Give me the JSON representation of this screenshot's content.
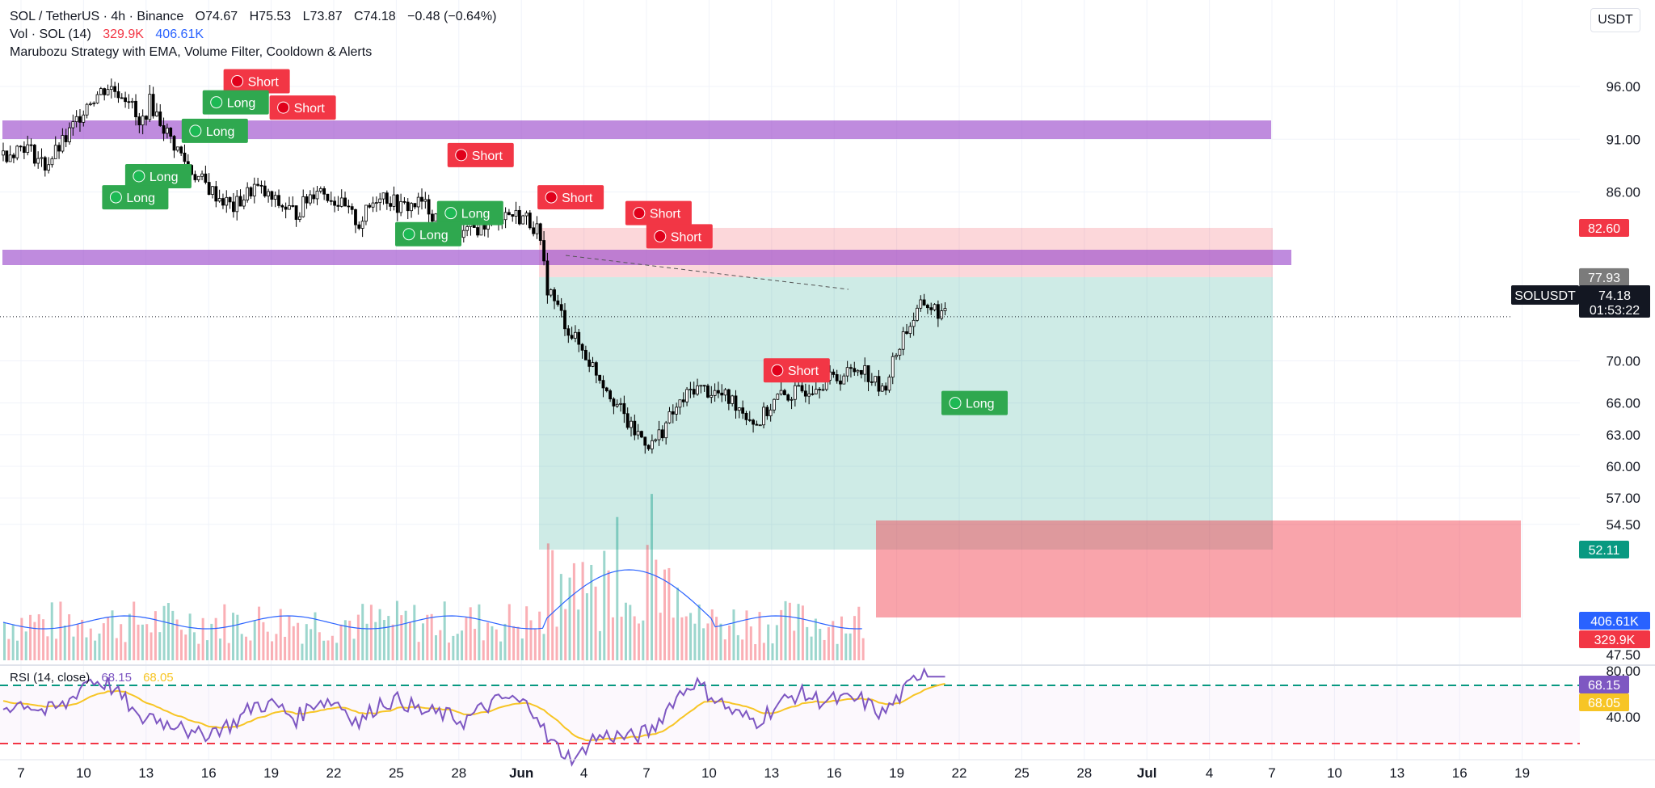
{
  "header": {
    "symbol": "SOL / TetherUS · 4h · Binance",
    "open": "O74.67",
    "high": "H75.53",
    "low": "L73.87",
    "close": "C74.18",
    "change": "−0.48 (−0.64%)",
    "vol_label": "Vol · SOL (14)",
    "vol_value": "329.9K",
    "vol_ma": "406.61K",
    "strategy": "Marubozu Strategy with EMA, Volume Filter, Cooldown & Alerts",
    "currency": "USDT"
  },
  "rsi_legend": {
    "label": "RSI (14, close)",
    "value": "68.15",
    "ma": "68.05"
  },
  "price_axis": {
    "ticks": [
      "96.00",
      "91.00",
      "86.00",
      "70.00",
      "66.00",
      "63.00",
      "60.00",
      "57.00",
      "54.50",
      "47.50"
    ],
    "rsi_ticks": [
      "80.00",
      "40.00"
    ]
  },
  "badges": {
    "upper_target": "82.60",
    "zone": "77.93",
    "symbol": "SOLUSDT",
    "last": "74.18",
    "countdown": "01:53:22",
    "stop": "52.11",
    "vol_ma": "406.61K",
    "vol": "329.9K",
    "rsi": "68.15",
    "rsi_ma": "68.05"
  },
  "date_labels": [
    "7",
    "10",
    "13",
    "16",
    "19",
    "22",
    "25",
    "28",
    "Jun",
    "4",
    "7",
    "10",
    "13",
    "16",
    "19",
    "22",
    "25",
    "28",
    "Jul",
    "4",
    "7",
    "10",
    "13",
    "16",
    "19"
  ],
  "signals": [
    {
      "label": "Short",
      "kind": "short",
      "x": 11.8,
      "price": 96.5
    },
    {
      "label": "Long",
      "kind": "long",
      "x": 10.8,
      "price": 94.5
    },
    {
      "label": "Short",
      "kind": "short",
      "x": 14.0,
      "price": 94.0
    },
    {
      "label": "Long",
      "kind": "long",
      "x": 9.8,
      "price": 91.8
    },
    {
      "label": "Short",
      "kind": "short",
      "x": 22.5,
      "price": 89.5
    },
    {
      "label": "Long",
      "kind": "long",
      "x": 7.1,
      "price": 87.5
    },
    {
      "label": "Long",
      "kind": "long",
      "x": 6.0,
      "price": 85.5
    },
    {
      "label": "Short",
      "kind": "short",
      "x": 26.8,
      "price": 85.5
    },
    {
      "label": "Long",
      "kind": "long",
      "x": 22.0,
      "price": 84.0
    },
    {
      "label": "Short",
      "kind": "short",
      "x": 31.0,
      "price": 84.0
    },
    {
      "label": "Long",
      "kind": "long",
      "x": 20.0,
      "price": 82.0
    },
    {
      "label": "Short",
      "kind": "short",
      "x": 32.0,
      "price": 81.8
    },
    {
      "label": "Short",
      "kind": "short",
      "x": 37.6,
      "price": 69.1
    },
    {
      "label": "Long",
      "kind": "long",
      "x": 46.1,
      "price": 66.0
    }
  ],
  "colors": {
    "up": "#089981",
    "down": "#f23645",
    "candle": "#000000",
    "zone": "#9c4dcc",
    "long_box": "#0b9981",
    "short_box": "#f23645",
    "vol_ma": "#2962ff",
    "rsi": "#7e57c2",
    "rsi_ma": "#f7c525"
  },
  "chart_data": {
    "type": "candlestick",
    "interval": "4h",
    "x_unit": "day offset from May 7 2025 (0 = May 7)",
    "close_path": [
      [
        0,
        89.5
      ],
      [
        1,
        90.5
      ],
      [
        2,
        88.5
      ],
      [
        3,
        91.0
      ],
      [
        4,
        94.5
      ],
      [
        5,
        96.0
      ],
      [
        6,
        95.0
      ],
      [
        6.5,
        92.0
      ],
      [
        7,
        94.5
      ],
      [
        8,
        91.0
      ],
      [
        9,
        88.0
      ],
      [
        10,
        86.0
      ],
      [
        11,
        84.5
      ],
      [
        12,
        86.5
      ],
      [
        13,
        85.0
      ],
      [
        14,
        84.0
      ],
      [
        15,
        86.5
      ],
      [
        16,
        85.0
      ],
      [
        17,
        83.0
      ],
      [
        18,
        86.0
      ],
      [
        19,
        84.5
      ],
      [
        20,
        85.0
      ],
      [
        21,
        83.0
      ],
      [
        22,
        82.0
      ],
      [
        23,
        83.0
      ],
      [
        24,
        84.0
      ],
      [
        25,
        83.5
      ],
      [
        25.5,
        82.5
      ],
      [
        26,
        77.0
      ],
      [
        27,
        73.0
      ],
      [
        28,
        70.0
      ],
      [
        29,
        67.0
      ],
      [
        30,
        63.5
      ],
      [
        31,
        62.0
      ],
      [
        32,
        65.0
      ],
      [
        33,
        67.5
      ],
      [
        34,
        67.0
      ],
      [
        35,
        66.0
      ],
      [
        36,
        64.0
      ],
      [
        37,
        66.5
      ],
      [
        38,
        67.0
      ],
      [
        39,
        68.0
      ],
      [
        40,
        68.5
      ],
      [
        41,
        69.5
      ],
      [
        42,
        67.0
      ],
      [
        43,
        72.5
      ],
      [
        44,
        75.5
      ],
      [
        45,
        74.2
      ]
    ],
    "volume_ma_level": "406.61K",
    "horizontal_zones": [
      {
        "from": 91.5,
        "to": 90.5
      },
      {
        "from": 78.5,
        "to": 77.4
      }
    ],
    "position_long": {
      "entry": 77.93,
      "target": 82.6,
      "stop": 52.11
    },
    "rsi_bands": [
      70,
      30
    ],
    "rsi_axis": [
      80,
      40
    ],
    "ylim": [
      47.5,
      99
    ]
  }
}
